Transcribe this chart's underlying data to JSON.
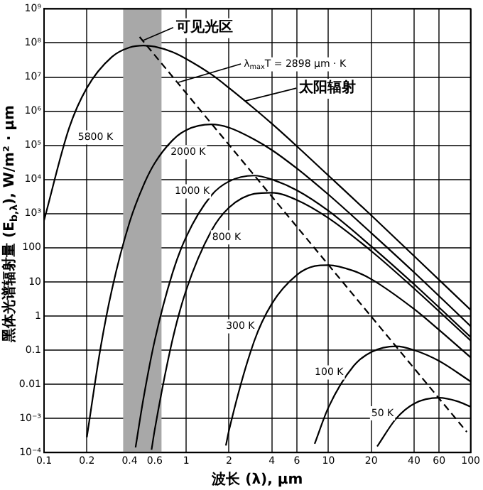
{
  "chart_data": {
    "type": "line",
    "xlabel": "波长 (λ), μm",
    "ylabel": "黑体光谱辐射量 (E$_{b,λ}$), W/m² · μm",
    "log": "xy",
    "grid": true,
    "legend": false,
    "marker": "none",
    "line_style": "solid",
    "xlim": [
      0.1,
      100
    ],
    "xticks": [
      0.1,
      0.2,
      0.4,
      0.6,
      1,
      2,
      4,
      6,
      10,
      20,
      40,
      60,
      100
    ],
    "ylim": [
      0.0001,
      1000000000
    ],
    "yticks": [
      {
        "value": 0.0001,
        "label": "10⁻⁴"
      },
      {
        "value": 0.001,
        "label": "10⁻³"
      },
      0.01,
      0.1,
      1,
      10,
      100,
      {
        "value": 1000,
        "label": "10³"
      },
      {
        "value": 10000,
        "label": "10⁴"
      },
      {
        "value": 100000,
        "label": "10⁵"
      },
      {
        "value": 1000000,
        "label": "10⁶"
      },
      {
        "value": 10000000,
        "label": "10⁷"
      },
      {
        "value": 100000000,
        "label": "10⁸"
      },
      {
        "value": 1000000000,
        "label": "10⁹"
      }
    ],
    "bands": [
      {
        "axis": "x",
        "from": 0.36,
        "to": 0.67,
        "color": "#a8a8a8"
      }
    ],
    "series": [
      {
        "name": "5800 K",
        "color": "#000000",
        "x": [
          0.1,
          0.15,
          0.2,
          0.3,
          0.4,
          0.5,
          0.6,
          0.8,
          1,
          1.5,
          2,
          3,
          4,
          6,
          10,
          20,
          40,
          100
        ],
        "values": [
          630,
          320000,
          4800000,
          39000000,
          74000000,
          84000000,
          78000000,
          54000000,
          34000000,
          12000000,
          4800000,
          1200000,
          430000,
          94000,
          13000,
          890,
          57,
          1.5
        ]
      },
      {
        "name": "2000 K",
        "color": "#000000",
        "x": [
          0.2,
          0.25,
          0.3,
          0.4,
          0.5,
          0.6,
          0.8,
          1,
          1.5,
          2,
          3,
          4,
          6,
          10,
          20,
          40,
          100
        ],
        "values": [
          0.00028,
          0.12,
          5.9,
          570,
          6700,
          30000,
          140000,
          280000,
          410000,
          330000,
          150000,
          73000,
          21000,
          3600,
          270,
          19,
          0.5
        ]
      },
      {
        "name": "1000 K",
        "color": "#000000",
        "x": [
          0.44,
          0.5,
          0.6,
          0.8,
          1,
          1.5,
          2,
          3,
          4,
          6,
          10,
          20,
          40,
          100
        ],
        "values": [
          0.00014,
          0.0038,
          0.19,
          18,
          210,
          3400,
          8800,
          13000,
          10000,
          4800,
          1200,
          110,
          8.5,
          0.24
        ]
      },
      {
        "name": "800 K",
        "color": "#000000",
        "x": [
          0.57,
          0.6,
          0.8,
          1,
          1.5,
          2,
          3,
          4,
          6,
          10,
          20,
          40,
          100
        ],
        "values": [
          0.00012,
          0.00046,
          0.2,
          5.8,
          310,
          1500,
          3800,
          4100,
          2500,
          740,
          80,
          6.4,
          0.19
        ]
      },
      {
        "name": "300 K",
        "color": "#000000",
        "x": [
          1.9,
          2,
          3,
          4,
          6,
          8,
          10,
          15,
          20,
          40,
          60,
          100
        ],
        "values": [
          0.00016,
          0.00045,
          0.18,
          2.3,
          16,
          29,
          31,
          21,
          12,
          1.6,
          0.39,
          0.061
        ]
      },
      {
        "name": "100 K",
        "color": "#000000",
        "x": [
          8,
          10,
          15,
          20,
          30,
          40,
          60,
          100
        ],
        "values": [
          0.00018,
          0.0021,
          0.034,
          0.088,
          0.13,
          0.1,
          0.048,
          0.012
        ]
      },
      {
        "name": "50 K",
        "color": "#000000",
        "x": [
          22,
          30,
          40,
          60,
          80,
          100
        ],
        "values": [
          0.00015,
          0.001,
          0.0027,
          0.004,
          0.0032,
          0.0022
        ]
      },
      {
        "color": "#000000",
        "line_style": "dashed",
        "x": [
          0.47,
          94
        ],
        "values": [
          150000000,
          0.0004
        ]
      }
    ],
    "annotations": [
      {
        "text": "可见光区",
        "x": 0.5,
        "y": 120000000
      },
      {
        "text": "λ$_{max}$T = 2898 μm · K",
        "x": 0.88,
        "y": 7000000
      },
      {
        "text": "太阳辐射",
        "x": 2.6,
        "y": 2000000
      }
    ]
  }
}
